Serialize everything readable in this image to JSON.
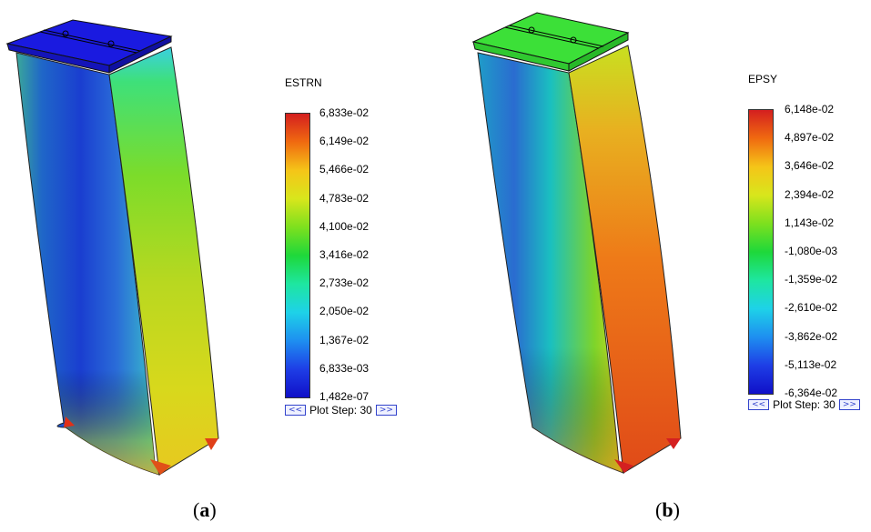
{
  "panel_a": {
    "legend_title": "ESTRN",
    "ticks": [
      "6,833e-02",
      "6,149e-02",
      "5,466e-02",
      "4,783e-02",
      "4,100e-02",
      "3,416e-02",
      "2,733e-02",
      "2,050e-02",
      "1,367e-02",
      "6,833e-03",
      "1,482e-07"
    ],
    "plot_step_label": "Plot Step: 30",
    "prev_label": "<<",
    "next_label": ">>",
    "caption_letter": "a"
  },
  "panel_b": {
    "legend_title": "EPSY",
    "ticks": [
      "6,148e-02",
      "4,897e-02",
      "3,646e-02",
      "2,394e-02",
      "1,143e-02",
      "-1,080e-03",
      "-1,359e-02",
      "-2,610e-02",
      "-3,862e-02",
      "-5,113e-02",
      "-6,364e-02"
    ],
    "plot_step_label": "Plot Step: 30",
    "prev_label": "<<",
    "next_label": ">>",
    "caption_letter": "b"
  },
  "colormap": [
    "#d41f1f",
    "#f06a10",
    "#f5c518",
    "#d8e61c",
    "#7de01e",
    "#1ed83a",
    "#1ee6a0",
    "#1ed2e8",
    "#1e8ff0",
    "#1e3ee6",
    "#1010c8"
  ]
}
